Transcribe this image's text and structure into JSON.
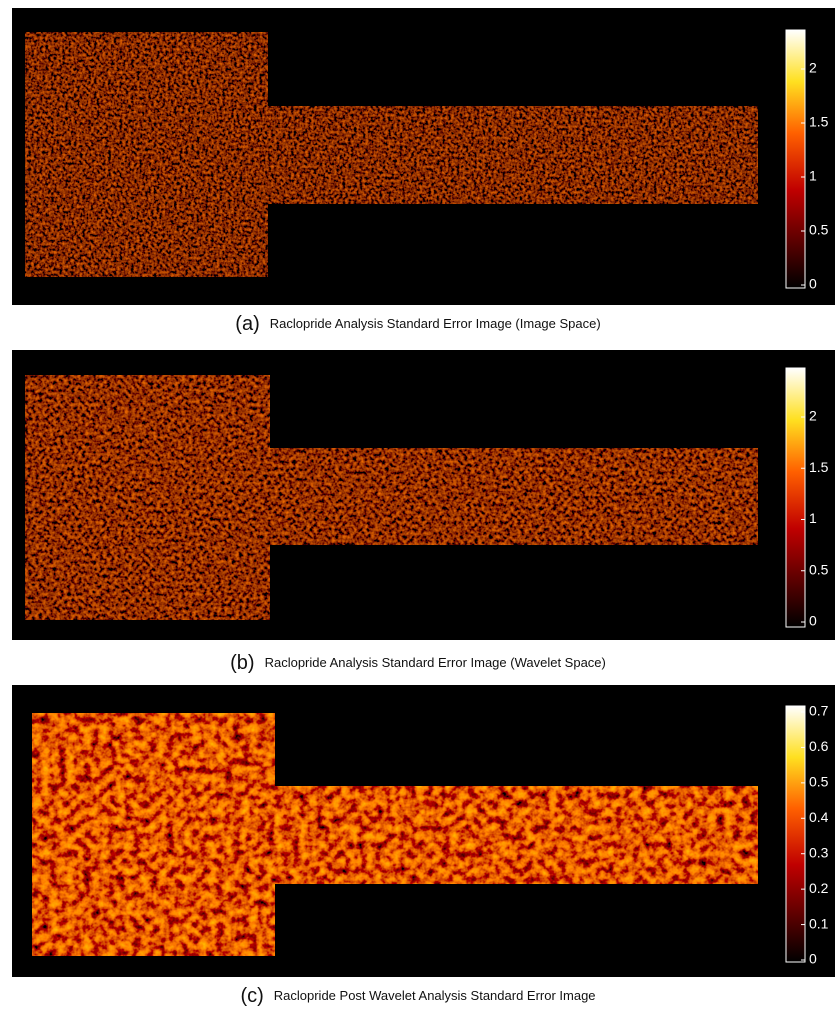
{
  "panels": [
    {
      "label": "(a)",
      "caption": "Raclopride Analysis Standard Error Image (Image Space)",
      "colorbar_ticks": [
        0,
        0.5,
        1,
        1.5,
        2
      ]
    },
    {
      "label": "(b)",
      "caption": "Raclopride Analysis Standard Error Image (Wavelet Space)",
      "colorbar_ticks": [
        0,
        0.5,
        1,
        1.5,
        2
      ]
    },
    {
      "label": "(c)",
      "caption": "Raclopride Post Wavelet Analysis Standard Error Image",
      "colorbar_ticks": [
        0,
        0.1,
        0.2,
        0.3,
        0.4,
        0.5,
        0.6,
        0.7
      ]
    }
  ]
}
